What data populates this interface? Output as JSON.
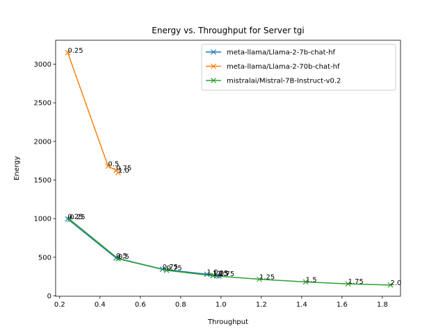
{
  "chart_data": {
    "type": "line",
    "title": "Energy vs. Throughput for Server tgi",
    "xlabel": "Throughput",
    "ylabel": "Energy",
    "xlim": [
      0.18,
      1.89
    ],
    "ylim": [
      -5,
      3310
    ],
    "xticks": [
      0.2,
      0.4,
      0.6,
      0.8,
      1.0,
      1.2,
      1.4,
      1.6,
      1.8
    ],
    "xtick_labels": [
      "0.2",
      "0.4",
      "0.6",
      "0.8",
      "1.0",
      "1.2",
      "1.4",
      "1.6",
      "1.8"
    ],
    "yticks": [
      0,
      500,
      1000,
      1500,
      2000,
      2500,
      3000
    ],
    "ytick_labels": [
      "0",
      "500",
      "1000",
      "1500",
      "2000",
      "2500",
      "3000"
    ],
    "grid": false,
    "legend_position": "top-right",
    "marker": "x",
    "series": [
      {
        "name": "meta-llama/Llama-2-7b-chat-hf",
        "color": "#1f77b4",
        "x": [
          0.24,
          0.48,
          0.71,
          0.93,
          0.96,
          0.98,
          0.99
        ],
        "y": [
          995,
          490,
          345,
          280,
          265,
          258,
          255
        ],
        "labels": [
          "0.25",
          "0.5",
          "0.75",
          "1.0",
          "1.25",
          "1.5",
          "1.75"
        ]
      },
      {
        "name": "meta-llama/Llama-2-70b-chat-hf",
        "color": "#ff7f0e",
        "x": [
          0.24,
          0.44,
          0.48,
          0.49
        ],
        "y": [
          3150,
          1680,
          1625,
          1595
        ],
        "labels": [
          "0.25",
          "0.5",
          "0.75",
          "1.0"
        ]
      },
      {
        "name": "mistralai/Mistral-7B-Instruct-v0.2",
        "color": "#2ca02c",
        "x": [
          0.25,
          0.49,
          0.73,
          0.96,
          1.19,
          1.42,
          1.63,
          1.84
        ],
        "y": [
          990,
          480,
          330,
          260,
          215,
          180,
          155,
          140
        ],
        "labels": [
          "0.25",
          "0.5",
          "0.75",
          "1.0",
          "1.25",
          "1.5",
          "1.75",
          "2.0"
        ]
      }
    ]
  }
}
